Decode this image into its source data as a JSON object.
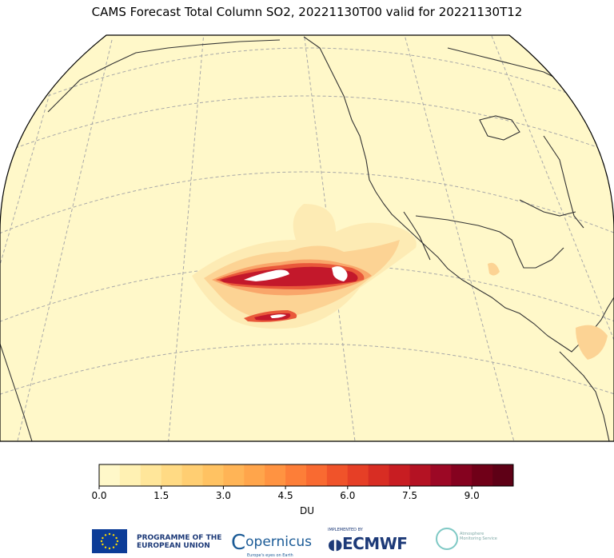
{
  "title": "CAMS Forecast Total Column SO2, 20221130T00 valid for 20221130T12",
  "colorbar": {
    "label": "DU",
    "ticks": [
      "0.0",
      "1.5",
      "3.0",
      "4.5",
      "6.0",
      "7.5",
      "9.0"
    ],
    "colors": [
      "#fff8c9",
      "#fff1b3",
      "#ffe69a",
      "#ffda84",
      "#ffce72",
      "#ffc262",
      "#ffb456",
      "#ffa54b",
      "#ff9341",
      "#fd7e38",
      "#f96a31",
      "#f0532a",
      "#e63f26",
      "#d82d23",
      "#c81d22",
      "#b41223",
      "#9c0825",
      "#85021f",
      "#700018",
      "#5e0016"
    ],
    "min": 0,
    "max": 10
  },
  "map": {
    "background": "#fff8c9",
    "coast_color": "#333333",
    "grid_color": "#aaaaaa",
    "plume_colors": [
      "#fdebb4",
      "#fcd394",
      "#f9a66a",
      "#e9583a",
      "#c3182b",
      "#9a0a26"
    ]
  },
  "logos": {
    "eu_programme": "PROGRAMME OF THE EUROPEAN UNION",
    "copernicus": "opernicus",
    "copernicus_tag": "Europe's eyes on Earth",
    "ecmwf_implemented": "IMPLEMENTED BY",
    "ecmwf": "ECMWF",
    "atmosphere_service": "Atmosphere Monitoring Service"
  }
}
